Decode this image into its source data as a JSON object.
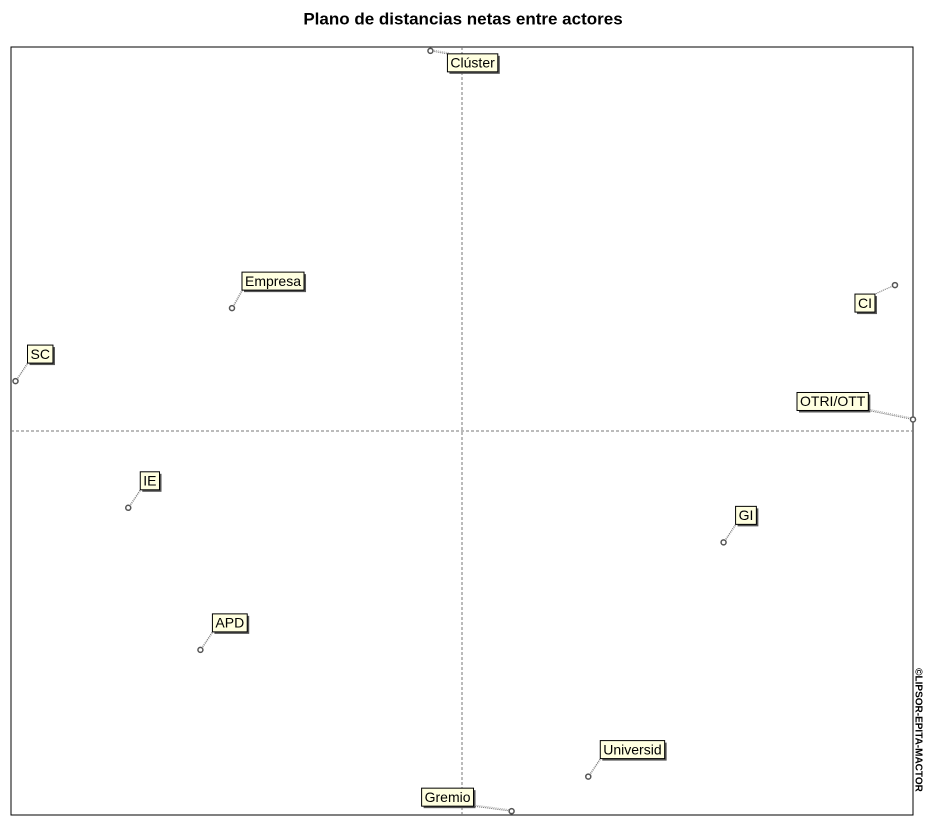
{
  "chart_data": {
    "type": "scatter",
    "title": "Plano de distancias netas entre actores",
    "watermark": "©LIPSOR-EPITA-MACTOR",
    "labels": [
      "Clúster",
      "Empresa",
      "SC",
      "CI",
      "OTRI/OTT",
      "IE",
      "GI",
      "APD",
      "Universid",
      "Gremio"
    ],
    "x": [
      -0.07,
      -0.51,
      -0.99,
      0.96,
      1.0,
      -0.74,
      0.58,
      -0.58,
      0.28,
      0.11
    ],
    "values": [
      0.99,
      0.32,
      0.13,
      0.38,
      0.03,
      -0.2,
      -0.29,
      -0.57,
      -0.9,
      -0.99
    ],
    "color": "#555555",
    "xlim": [
      -1,
      1
    ],
    "ylim": [
      -1,
      1
    ]
  }
}
